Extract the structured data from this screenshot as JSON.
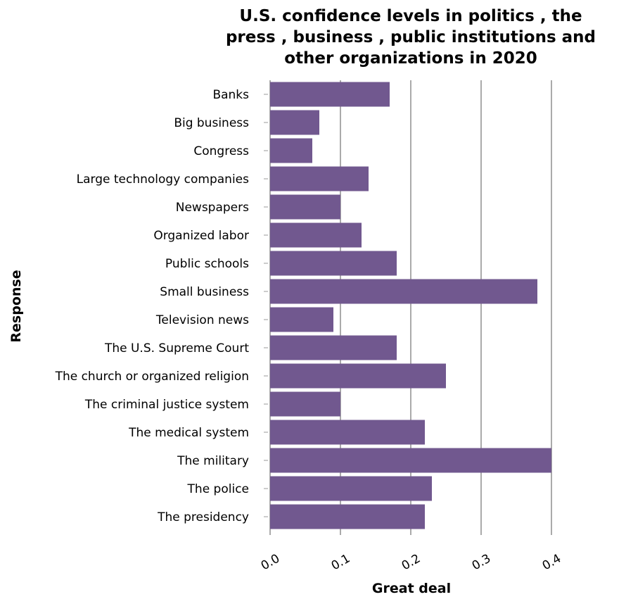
{
  "chart_data": {
    "type": "bar",
    "orientation": "horizontal",
    "title_lines": [
      "U.S. confidence levels in politics , the",
      "press , business , public institutions and",
      "other organizations in 2020"
    ],
    "xlabel": "Great deal",
    "ylabel": "Response",
    "xlim": [
      0,
      0.4
    ],
    "xticks": [
      "0.0",
      "0.1",
      "0.2",
      "0.3",
      "0.4"
    ],
    "grid": "vertical",
    "bar_color": "#71588f",
    "categories": [
      "Banks",
      "Big business",
      "Congress",
      "Large technology companies",
      "Newspapers",
      "Organized labor",
      "Public schools",
      "Small business",
      "Television news",
      "The U.S. Supreme Court",
      "The church or organized religion",
      "The criminal justice system",
      "The medical system",
      "The military",
      "The police",
      "The presidency"
    ],
    "values": [
      0.17,
      0.07,
      0.06,
      0.14,
      0.1,
      0.13,
      0.18,
      0.38,
      0.09,
      0.18,
      0.25,
      0.1,
      0.22,
      0.4,
      0.23,
      0.22
    ]
  }
}
